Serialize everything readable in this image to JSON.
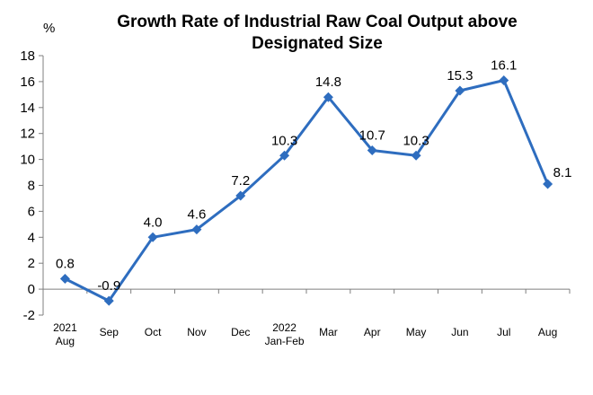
{
  "chart_data": {
    "type": "line",
    "title_lines": [
      "Growth Rate of Industrial Raw Coal Output above",
      "Designated Size"
    ],
    "unit": "%",
    "categories": [
      [
        "2021",
        "Aug"
      ],
      [
        "Sep"
      ],
      [
        "Oct"
      ],
      [
        "Nov"
      ],
      [
        "Dec"
      ],
      [
        "2022",
        "Jan-Feb"
      ],
      [
        "Mar"
      ],
      [
        "Apr"
      ],
      [
        "May"
      ],
      [
        "Jun"
      ],
      [
        "Jul"
      ],
      [
        "Aug"
      ]
    ],
    "values": [
      0.8,
      -0.9,
      4.0,
      4.6,
      7.2,
      10.3,
      14.8,
      10.7,
      10.3,
      15.3,
      16.1,
      8.1
    ],
    "data_labels": [
      "0.8",
      "-0.9",
      "4.0",
      "4.6",
      "7.2",
      "10.3",
      "14.8",
      "10.7",
      "10.3",
      "15.3",
      "16.1",
      "8.1"
    ],
    "ylim": [
      -2,
      18
    ],
    "yticks": [
      -2,
      0,
      2,
      4,
      6,
      8,
      10,
      12,
      14,
      16,
      18
    ],
    "grid": false,
    "legend": "none",
    "color": "#2e6dbf"
  }
}
